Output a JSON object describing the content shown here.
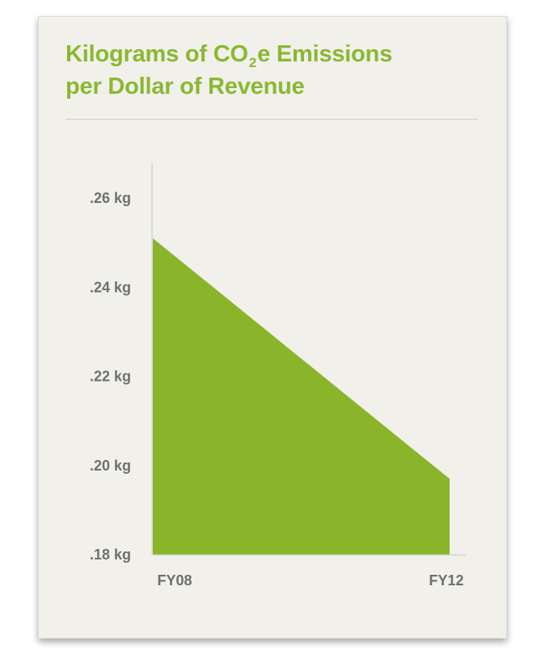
{
  "title": {
    "prefix": "Kilograms of CO",
    "subscript": "2",
    "suffix": "e Emissions",
    "line2": "per Dollar of Revenue",
    "color": "#8ab832"
  },
  "chart_data": {
    "type": "area",
    "title": "Kilograms of CO2e Emissions per Dollar of Revenue",
    "categories": [
      "FY08",
      "FY12"
    ],
    "x": [
      "FY08",
      "FY12"
    ],
    "values": [
      0.251,
      0.197
    ],
    "series": [
      {
        "values": [
          0.251,
          0.197
        ],
        "color": "#8ab52a"
      }
    ],
    "ylim": [
      0.18,
      0.268
    ],
    "yticks": [
      0.26,
      0.24,
      0.22,
      0.2,
      0.18
    ],
    "ytick_labels": [
      ".26 kg",
      ".24 kg",
      ".22 kg",
      ".20 kg",
      ".18 kg"
    ],
    "xlabel": "",
    "ylabel": "",
    "grid": false,
    "legend": "none"
  }
}
